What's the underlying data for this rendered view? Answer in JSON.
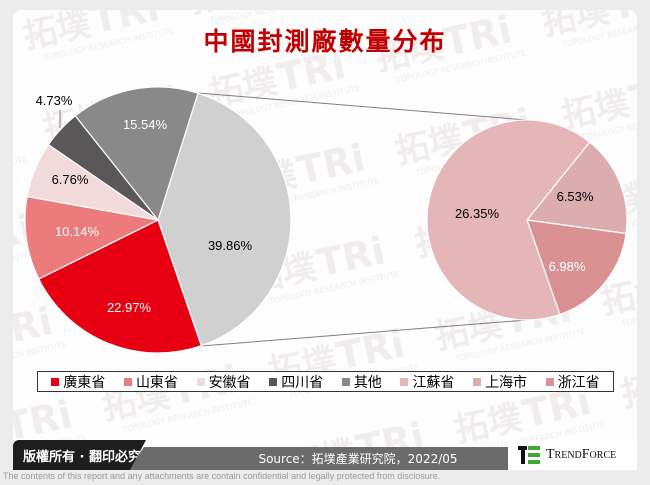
{
  "header": {
    "title": "中國封測廠數量分布"
  },
  "chart_data": {
    "type": "pie",
    "subtype": "pie-of-pie",
    "title": "中國封測廠數量分布",
    "unit": "%",
    "primary_pie": {
      "slices": [
        {
          "name": "其他",
          "value": 39.86,
          "label": "39.86%",
          "color": "#d0d0d0"
        },
        {
          "name": "廣東省",
          "value": 22.97,
          "label": "22.97%",
          "color": "#e60012"
        },
        {
          "name": "山東省",
          "value": 10.14,
          "label": "10.14%",
          "color": "#ec7b7b"
        },
        {
          "name": "安徽省",
          "value": 6.76,
          "label": "6.76%",
          "color": "#f3dada"
        },
        {
          "name": "四川省",
          "value": 4.73,
          "label": "4.73%",
          "color": "#595757"
        },
        {
          "name": "其他(灰)",
          "value": 15.54,
          "label": "15.54%",
          "color": "#898989"
        }
      ]
    },
    "secondary_pie": {
      "represents": "其他",
      "total": 39.86,
      "slices": [
        {
          "name": "江蘇省",
          "value": 26.35,
          "label": "26.35%",
          "color": "#e5b6b7"
        },
        {
          "name": "上海市",
          "value": 6.53,
          "label": "6.53%",
          "color": "#dcadaf"
        },
        {
          "name": "浙江省",
          "value": 6.98,
          "label": "6.98%",
          "color": "#d99192"
        }
      ]
    },
    "legend": {
      "position": "bottom",
      "entries": [
        {
          "name": "廣東省",
          "color": "#e60012"
        },
        {
          "name": "山東省",
          "color": "#ec7b7b"
        },
        {
          "name": "安徽省",
          "color": "#f3dada"
        },
        {
          "name": "四川省",
          "color": "#595757"
        },
        {
          "name": "其他",
          "color": "#898989"
        },
        {
          "name": "江蘇省",
          "color": "#e5b6b7"
        },
        {
          "name": "上海市",
          "color": "#dcadaf"
        },
        {
          "name": "浙江省",
          "color": "#d99192"
        }
      ]
    }
  },
  "footer": {
    "copyright": "版權所有 · 翻印必究",
    "source": "Source：拓墣產業研究院，2022/05",
    "brand": "TrendForce",
    "disclaimer": "The contents of this report and any attachments are contain confidential and legally protected from disclosure."
  },
  "watermark": {
    "text_cn": "拓墣",
    "text_en": "TRi",
    "subtitle": "TOPOLOGY RESEARCH INSTITUTE"
  }
}
